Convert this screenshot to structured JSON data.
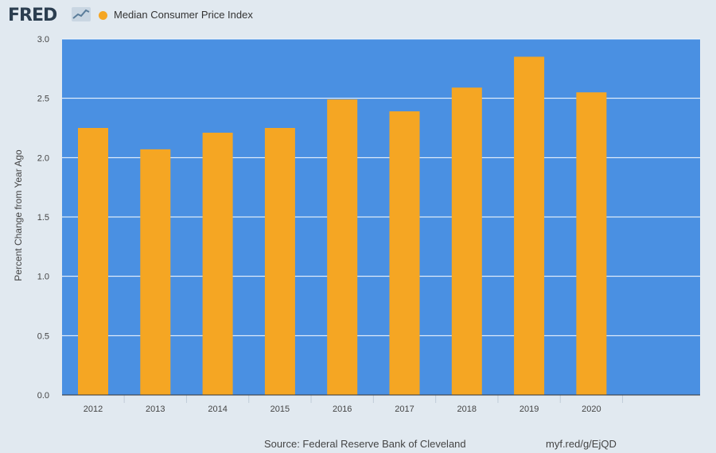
{
  "header": {
    "logo_text": "FRED",
    "legend_label": "Median Consumer Price Index"
  },
  "footer": {
    "source": "Source: Federal Reserve Bank of Cleveland",
    "link": "myf.red/g/EjQD"
  },
  "colors": {
    "page_background": "#e1e9f0",
    "plot_background": "#4a90e2",
    "bar": "#f5a623",
    "gridline": "#ffffff",
    "text": "#444444"
  },
  "chart_data": {
    "type": "bar",
    "title": "",
    "xlabel": "",
    "ylabel": "Percent Change from Year Ago",
    "categories": [
      "2012",
      "2013",
      "2014",
      "2015",
      "2016",
      "2017",
      "2018",
      "2019",
      "2020"
    ],
    "series": [
      {
        "name": "Median Consumer Price Index",
        "values": [
          2.25,
          2.07,
          2.21,
          2.25,
          2.49,
          2.39,
          2.59,
          2.85,
          2.55
        ]
      }
    ],
    "ylim": [
      0,
      3.0
    ],
    "yticks": [
      "0.0",
      "0.5",
      "1.0",
      "1.5",
      "2.0",
      "2.5",
      "3.0"
    ],
    "grid": true,
    "legend_position": "top-left"
  }
}
